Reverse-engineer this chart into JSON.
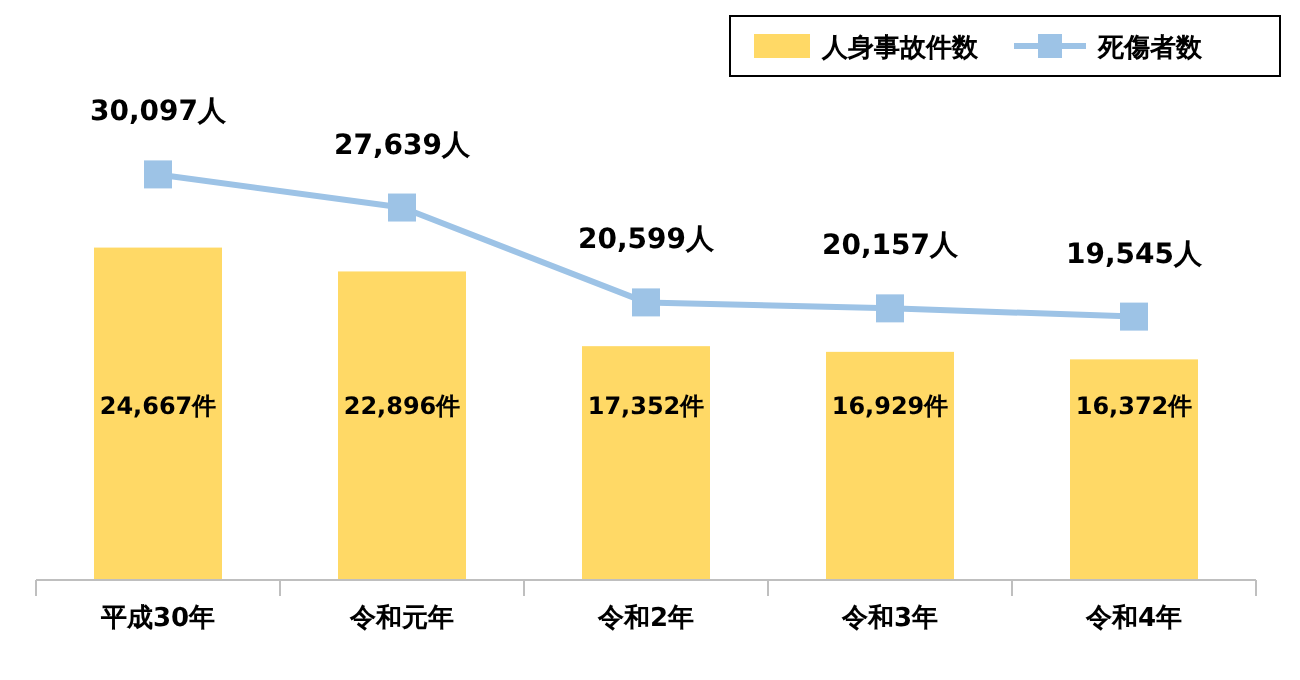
{
  "chart_data": {
    "type": "bar",
    "categories": [
      "平成30年",
      "令和元年",
      "令和2年",
      "令和3年",
      "令和4年"
    ],
    "series": [
      {
        "name": "人身事故件数",
        "color": "#ffd966",
        "values": [
          24667,
          22896,
          17352,
          16929,
          16372
        ],
        "value_labels": [
          "24,667件",
          "22,896件",
          "17,352件",
          "16,929件",
          "16,372件"
        ]
      },
      {
        "name": "死傷者数",
        "type": "line",
        "color": "#9dc3e6",
        "marker": "square",
        "values": [
          30097,
          27639,
          20599,
          20157,
          19545
        ],
        "value_labels": [
          "30,097人",
          "27,639人",
          "20,599人",
          "20,157人",
          "19,545人"
        ]
      }
    ],
    "legend": "top right"
  }
}
